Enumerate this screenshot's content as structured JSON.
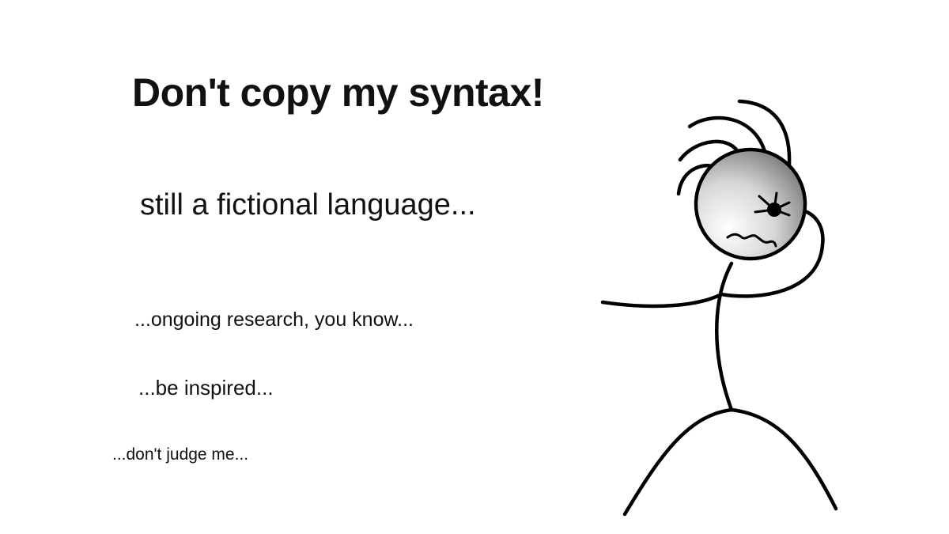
{
  "slide": {
    "title": "Don't copy my syntax!",
    "subtitle": "still a fictional language...",
    "lines": [
      "...ongoing research, you know...",
      "...be inspired...",
      "...don't judge me..."
    ]
  },
  "illustration": {
    "name": "stick-figure-scratching-head",
    "head_gradient": [
      "#ffffff",
      "#5a5a5a"
    ],
    "stroke_color": "#000000"
  }
}
